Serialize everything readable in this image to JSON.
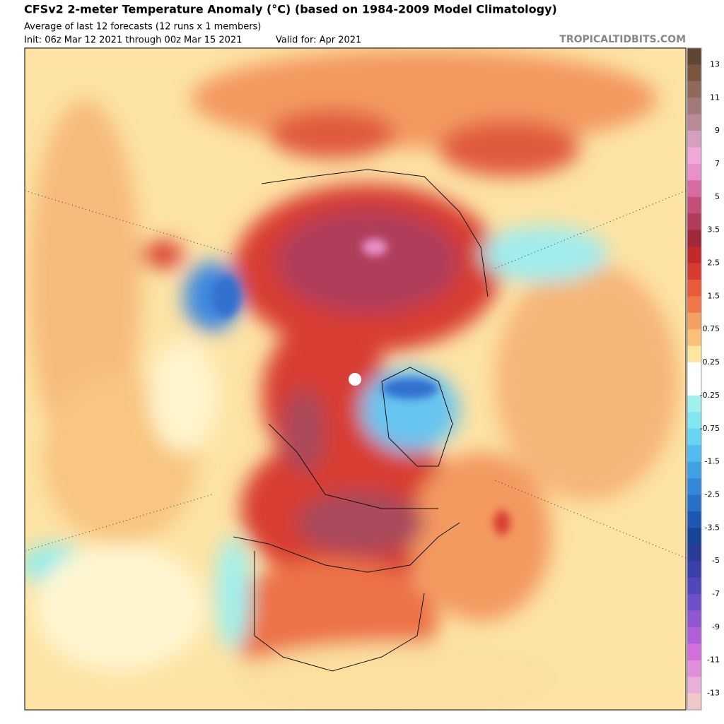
{
  "header": {
    "title": "CFSv2 2-meter Temperature Anomaly (°C) (based on 1984-2009 Model Climatology)",
    "subtitle": "Average of last 12 forecasts (12 runs x 1 members)",
    "init": "Init: 06z Mar 12 2021 through 00z Mar 15 2021",
    "valid": "Valid for: Apr 2021",
    "credit": "TROPICALTIDBITS.COM"
  },
  "legend": {
    "labels": [
      "13",
      "11",
      "9",
      "7",
      "5",
      "3.5",
      "2.5",
      "1.5",
      "0.75",
      "0.25",
      "-0.25",
      "-0.75",
      "-1.5",
      "-2.5",
      "-3.5",
      "-5",
      "-7",
      "-9",
      "-11",
      "-13"
    ],
    "colors": [
      "#5e4632",
      "#7a5540",
      "#8f6a5a",
      "#a07a7a",
      "#b88a96",
      "#d4a0c0",
      "#f0a8d8",
      "#e890c8",
      "#d86aa0",
      "#c44e78",
      "#b03c5a",
      "#a02838",
      "#c02a2a",
      "#d83c30",
      "#e85a38",
      "#f07848",
      "#f5a060",
      "#f8c078",
      "#fde6a0",
      "#ffffff",
      "#ffffff",
      "#a0f0ec",
      "#80e6f0",
      "#68d4f4",
      "#50bcf0",
      "#40a0e4",
      "#3488d8",
      "#2870c8",
      "#1f58b0",
      "#184498",
      "#283c98",
      "#3a40a8",
      "#5048b8",
      "#7050c8",
      "#9058d0",
      "#b060d8",
      "#d070d8",
      "#e090d8",
      "#e8b0d8",
      "#f0c8c8"
    ]
  }
}
